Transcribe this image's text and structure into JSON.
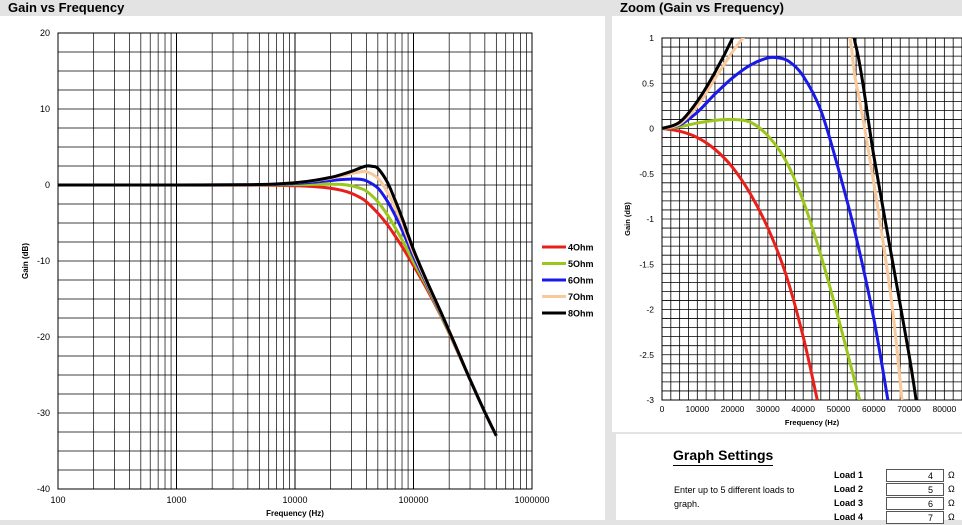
{
  "main_chart_title": "Gain vs Frequency",
  "zoom_chart_title": "Zoom (Gain vs Frequency)",
  "chart_data": [
    {
      "type": "line",
      "title": "Gain vs Frequency",
      "xlabel": "Frequency (Hz)",
      "ylabel": "Gain (dB)",
      "x_scale": "log",
      "xlim": [
        100,
        1000000
      ],
      "ylim": [
        -40,
        20
      ],
      "x_ticks": [
        "100",
        "1000",
        "10000",
        "100000",
        "1000000"
      ],
      "y_ticks": [
        "20",
        "10",
        "0",
        "-10",
        "-20",
        "-30",
        "-40"
      ],
      "grid": true,
      "legend_position": "right",
      "series": [
        {
          "name": "4Ohm",
          "color": "#e8201c",
          "x": [
            100,
            1000,
            5000,
            10000,
            15000,
            20000,
            25000,
            30000,
            35000,
            40000,
            50000,
            60000,
            70000,
            80000,
            100000,
            130000,
            170000,
            220000,
            300000,
            400000,
            500000
          ],
          "y": [
            0,
            0,
            -0.02,
            -0.1,
            -0.23,
            -0.43,
            -0.72,
            -1.1,
            -1.6,
            -2.2,
            -3.7,
            -5.2,
            -6.7,
            -8.1,
            -10.6,
            -13.7,
            -17.2,
            -20.9,
            -25.6,
            -29.9,
            -33
          ]
        },
        {
          "name": "5Ohm",
          "color": "#9bc61c",
          "x": [
            100,
            1000,
            5000,
            10000,
            15000,
            20000,
            25000,
            30000,
            35000,
            40000,
            50000,
            60000,
            70000,
            80000,
            100000,
            130000,
            170000,
            220000,
            300000,
            400000,
            500000
          ],
          "y": [
            0,
            0,
            0.01,
            0.05,
            0.09,
            0.1,
            0.07,
            -0.1,
            -0.4,
            -0.8,
            -2.2,
            -3.9,
            -5.6,
            -7.2,
            -10.1,
            -13.4,
            -17.1,
            -20.8,
            -25.6,
            -29.9,
            -33
          ]
        },
        {
          "name": "6Ohm",
          "color": "#1a1ae8",
          "x": [
            100,
            1000,
            5000,
            10000,
            15000,
            20000,
            25000,
            30000,
            35000,
            40000,
            50000,
            60000,
            70000,
            80000,
            100000,
            130000,
            170000,
            220000,
            300000,
            400000,
            500000
          ],
          "y": [
            0,
            0,
            0.03,
            0.2,
            0.4,
            0.58,
            0.72,
            0.78,
            0.76,
            0.55,
            -0.4,
            -2.1,
            -4,
            -5.9,
            -9.4,
            -13.1,
            -16.9,
            -20.7,
            -25.6,
            -29.9,
            -33
          ]
        },
        {
          "name": "7Ohm",
          "color": "#f9c99b",
          "x": [
            100,
            1000,
            5000,
            10000,
            15000,
            20000,
            25000,
            30000,
            35000,
            40000,
            50000,
            60000,
            70000,
            80000,
            100000,
            130000,
            170000,
            220000,
            300000,
            400000,
            500000
          ],
          "y": [
            0,
            0,
            0.05,
            0.3,
            0.6,
            0.9,
            1.2,
            1.5,
            1.7,
            1.75,
            0.9,
            -0.9,
            -3,
            -5,
            -8.9,
            -12.9,
            -16.8,
            -20.7,
            -25.6,
            -29.9,
            -33
          ]
        },
        {
          "name": "8Ohm",
          "color": "#000000",
          "x": [
            100,
            1000,
            5000,
            10000,
            15000,
            20000,
            25000,
            30000,
            35000,
            40000,
            45000,
            50000,
            60000,
            70000,
            80000,
            100000,
            130000,
            170000,
            220000,
            300000,
            400000,
            500000
          ],
          "y": [
            0,
            0,
            0.06,
            0.3,
            0.65,
            1,
            1.4,
            1.8,
            2.2,
            2.5,
            2.45,
            2.2,
            0.4,
            -2,
            -4.3,
            -8.5,
            -12.7,
            -16.7,
            -20.7,
            -25.6,
            -29.9,
            -33
          ]
        }
      ]
    },
    {
      "type": "line",
      "title": "Zoom (Gain vs Frequency)",
      "xlabel": "Frequency (Hz)",
      "ylabel": "Gain (dB)",
      "x_scale": "linear",
      "xlim": [
        0,
        85000
      ],
      "ylim": [
        -3,
        1
      ],
      "x_ticks": [
        "0",
        "10000",
        "20000",
        "30000",
        "40000",
        "50000",
        "60000",
        "70000",
        "80000"
      ],
      "y_ticks": [
        "1",
        "0.5",
        "0",
        "-0.5",
        "-1",
        "-1.5",
        "-2",
        "-2.5",
        "-3"
      ],
      "grid": true,
      "series": [
        {
          "name": "4Ohm",
          "color": "#e8201c",
          "x": [
            0,
            5000,
            10000,
            15000,
            20000,
            25000,
            30000,
            35000,
            40000,
            44000
          ],
          "y": [
            0,
            -0.03,
            -0.1,
            -0.23,
            -0.43,
            -0.72,
            -1.1,
            -1.6,
            -2.3,
            -3
          ]
        },
        {
          "name": "5Ohm",
          "color": "#9bc61c",
          "x": [
            0,
            5000,
            10000,
            15000,
            20000,
            25000,
            30000,
            35000,
            40000,
            45000,
            50000,
            56000
          ],
          "y": [
            0,
            0.02,
            0.06,
            0.09,
            0.1,
            0.07,
            -0.08,
            -0.35,
            -0.8,
            -1.4,
            -2.1,
            -3
          ]
        },
        {
          "name": "6Ohm",
          "color": "#1a1ae8",
          "x": [
            0,
            5000,
            10000,
            15000,
            20000,
            25000,
            30000,
            33000,
            36000,
            40000,
            45000,
            50000,
            55000,
            60000,
            64000
          ],
          "y": [
            0,
            0.04,
            0.18,
            0.38,
            0.56,
            0.7,
            0.78,
            0.78,
            0.74,
            0.58,
            0.2,
            -0.45,
            -1.2,
            -2.1,
            -3
          ]
        },
        {
          "name": "7Ohm",
          "color": "#f9c99b",
          "x": [
            0,
            5000,
            10000,
            15000,
            20000,
            25000,
            27000,
            50000,
            55000,
            60000,
            65000,
            68000
          ],
          "y": [
            0,
            0.05,
            0.25,
            0.55,
            0.85,
            1.1,
            1.2,
            1.2,
            0.5,
            -0.6,
            -1.9,
            -3
          ]
        },
        {
          "name": "8Ohm",
          "color": "#000000",
          "x": [
            0,
            5000,
            10000,
            15000,
            20000,
            22000,
            50000,
            55000,
            60000,
            65000,
            70000,
            72000
          ],
          "y": [
            0,
            0.07,
            0.3,
            0.62,
            1,
            1.2,
            1.2,
            0.9,
            -0.3,
            -1.4,
            -2.5,
            -3
          ]
        }
      ]
    }
  ],
  "settings": {
    "title": "Graph Settings",
    "description": "Enter up to 5 different loads to graph.",
    "unit": "Ω",
    "loads": [
      {
        "label": "Load 1",
        "value": "4"
      },
      {
        "label": "Load 2",
        "value": "5"
      },
      {
        "label": "Load 3",
        "value": "6"
      },
      {
        "label": "Load 4",
        "value": "7"
      }
    ]
  }
}
